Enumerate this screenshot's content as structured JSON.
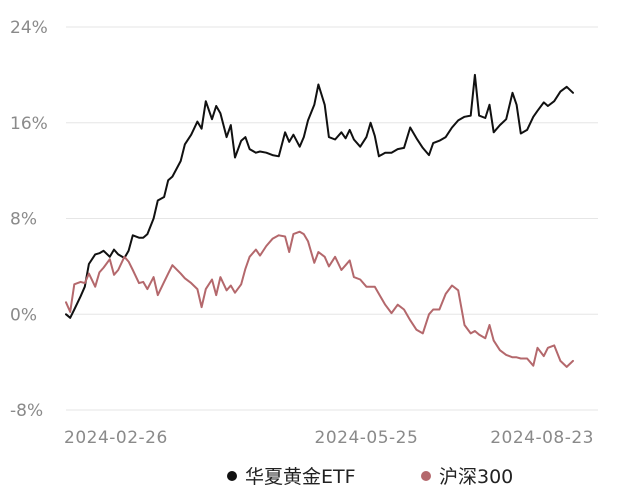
{
  "chart_data": {
    "type": "line",
    "title": "",
    "xlabel": "",
    "ylabel": "",
    "ylim": [
      -8,
      24
    ],
    "yticks": [
      24,
      16,
      8,
      0,
      -8
    ],
    "ytick_labels": [
      "24%",
      "16%",
      "8%",
      "0%",
      "-8%"
    ],
    "xticks": [
      "2024-02-26",
      "2024-05-25",
      "2024-08-23"
    ],
    "x_start": "2024-01-02",
    "x_end": "2024-09-13",
    "grid": true,
    "legend_position": "bottom",
    "series": [
      {
        "name": "华夏黄金ETF",
        "color": "#111111",
        "points": [
          [
            "2024-01-02",
            0.0
          ],
          [
            "2024-01-04",
            -0.3
          ],
          [
            "2024-01-06",
            0.4
          ],
          [
            "2024-01-09",
            1.5
          ],
          [
            "2024-01-11",
            2.3
          ],
          [
            "2024-01-13",
            4.2
          ],
          [
            "2024-01-16",
            5.0
          ],
          [
            "2024-01-18",
            5.1
          ],
          [
            "2024-01-20",
            5.3
          ],
          [
            "2024-01-23",
            4.8
          ],
          [
            "2024-01-25",
            5.4
          ],
          [
            "2024-01-27",
            5.0
          ],
          [
            "2024-01-30",
            4.7
          ],
          [
            "2024-02-01",
            5.3
          ],
          [
            "2024-02-03",
            6.6
          ],
          [
            "2024-02-06",
            6.4
          ],
          [
            "2024-02-08",
            6.4
          ],
          [
            "2024-02-10",
            6.7
          ],
          [
            "2024-02-13",
            8.0
          ],
          [
            "2024-02-15",
            9.5
          ],
          [
            "2024-02-18",
            9.8
          ],
          [
            "2024-02-20",
            11.2
          ],
          [
            "2024-02-22",
            11.5
          ],
          [
            "2024-02-26",
            12.8
          ],
          [
            "2024-02-28",
            14.2
          ],
          [
            "2024-03-02",
            15.0
          ],
          [
            "2024-03-05",
            16.1
          ],
          [
            "2024-03-07",
            15.5
          ],
          [
            "2024-03-09",
            17.8
          ],
          [
            "2024-03-12",
            16.3
          ],
          [
            "2024-03-14",
            17.4
          ],
          [
            "2024-03-16",
            16.8
          ],
          [
            "2024-03-19",
            14.8
          ],
          [
            "2024-03-21",
            15.8
          ],
          [
            "2024-03-23",
            13.1
          ],
          [
            "2024-03-26",
            14.5
          ],
          [
            "2024-03-28",
            14.8
          ],
          [
            "2024-03-30",
            13.8
          ],
          [
            "2024-04-02",
            13.5
          ],
          [
            "2024-04-04",
            13.6
          ],
          [
            "2024-04-07",
            13.5
          ],
          [
            "2024-04-10",
            13.3
          ],
          [
            "2024-04-13",
            13.2
          ],
          [
            "2024-04-16",
            15.2
          ],
          [
            "2024-04-18",
            14.4
          ],
          [
            "2024-04-20",
            15.0
          ],
          [
            "2024-04-23",
            14.0
          ],
          [
            "2024-04-25",
            14.8
          ],
          [
            "2024-04-27",
            16.2
          ],
          [
            "2024-04-30",
            17.5
          ],
          [
            "2024-05-02",
            19.2
          ],
          [
            "2024-05-05",
            17.5
          ],
          [
            "2024-05-07",
            14.8
          ],
          [
            "2024-05-10",
            14.6
          ],
          [
            "2024-05-13",
            15.2
          ],
          [
            "2024-05-15",
            14.7
          ],
          [
            "2024-05-17",
            15.4
          ],
          [
            "2024-05-19",
            14.6
          ],
          [
            "2024-05-22",
            14.0
          ],
          [
            "2024-05-25",
            14.8
          ],
          [
            "2024-05-27",
            16.0
          ],
          [
            "2024-05-29",
            14.9
          ],
          [
            "2024-05-31",
            13.2
          ],
          [
            "2024-06-03",
            13.5
          ],
          [
            "2024-06-06",
            13.5
          ],
          [
            "2024-06-09",
            13.8
          ],
          [
            "2024-06-12",
            13.9
          ],
          [
            "2024-06-15",
            15.6
          ],
          [
            "2024-06-18",
            14.7
          ],
          [
            "2024-06-21",
            13.9
          ],
          [
            "2024-06-24",
            13.3
          ],
          [
            "2024-06-26",
            14.3
          ],
          [
            "2024-06-29",
            14.5
          ],
          [
            "2024-07-02",
            14.8
          ],
          [
            "2024-07-05",
            15.6
          ],
          [
            "2024-07-08",
            16.2
          ],
          [
            "2024-07-11",
            16.5
          ],
          [
            "2024-07-14",
            16.6
          ],
          [
            "2024-07-16",
            20.0
          ],
          [
            "2024-07-18",
            16.6
          ],
          [
            "2024-07-21",
            16.4
          ],
          [
            "2024-07-23",
            17.5
          ],
          [
            "2024-07-25",
            15.2
          ],
          [
            "2024-07-28",
            15.8
          ],
          [
            "2024-07-31",
            16.3
          ],
          [
            "2024-08-03",
            18.5
          ],
          [
            "2024-08-05",
            17.5
          ],
          [
            "2024-08-07",
            15.1
          ],
          [
            "2024-08-10",
            15.4
          ],
          [
            "2024-08-13",
            16.5
          ],
          [
            "2024-08-15",
            17.0
          ],
          [
            "2024-08-18",
            17.7
          ],
          [
            "2024-08-20",
            17.4
          ],
          [
            "2024-08-23",
            17.8
          ],
          [
            "2024-08-26",
            18.6
          ],
          [
            "2024-08-29",
            19.0
          ],
          [
            "2024-09-01",
            18.5
          ]
        ]
      },
      {
        "name": "沪深300",
        "color": "#b4686c",
        "points": [
          [
            "2024-01-02",
            1.0
          ],
          [
            "2024-01-04",
            0.2
          ],
          [
            "2024-01-06",
            2.5
          ],
          [
            "2024-01-09",
            2.7
          ],
          [
            "2024-01-11",
            2.6
          ],
          [
            "2024-01-13",
            3.4
          ],
          [
            "2024-01-16",
            2.3
          ],
          [
            "2024-01-18",
            3.5
          ],
          [
            "2024-01-20",
            3.9
          ],
          [
            "2024-01-23",
            4.6
          ],
          [
            "2024-01-25",
            3.3
          ],
          [
            "2024-01-27",
            3.7
          ],
          [
            "2024-01-30",
            4.8
          ],
          [
            "2024-02-01",
            4.4
          ],
          [
            "2024-02-03",
            3.7
          ],
          [
            "2024-02-06",
            2.6
          ],
          [
            "2024-02-08",
            2.7
          ],
          [
            "2024-02-10",
            2.1
          ],
          [
            "2024-02-13",
            3.1
          ],
          [
            "2024-02-15",
            1.6
          ],
          [
            "2024-02-18",
            2.7
          ],
          [
            "2024-02-20",
            3.4
          ],
          [
            "2024-02-22",
            4.1
          ],
          [
            "2024-02-26",
            3.4
          ],
          [
            "2024-02-28",
            3.0
          ],
          [
            "2024-03-02",
            2.6
          ],
          [
            "2024-03-05",
            2.1
          ],
          [
            "2024-03-07",
            0.6
          ],
          [
            "2024-03-09",
            2.1
          ],
          [
            "2024-03-12",
            2.9
          ],
          [
            "2024-03-14",
            1.6
          ],
          [
            "2024-03-16",
            3.1
          ],
          [
            "2024-03-19",
            2.0
          ],
          [
            "2024-03-21",
            2.4
          ],
          [
            "2024-03-23",
            1.8
          ],
          [
            "2024-03-26",
            2.5
          ],
          [
            "2024-03-28",
            3.8
          ],
          [
            "2024-03-30",
            4.8
          ],
          [
            "2024-04-02",
            5.4
          ],
          [
            "2024-04-04",
            4.9
          ],
          [
            "2024-04-07",
            5.7
          ],
          [
            "2024-04-10",
            6.3
          ],
          [
            "2024-04-13",
            6.6
          ],
          [
            "2024-04-16",
            6.5
          ],
          [
            "2024-04-18",
            5.2
          ],
          [
            "2024-04-20",
            6.7
          ],
          [
            "2024-04-23",
            6.9
          ],
          [
            "2024-04-25",
            6.7
          ],
          [
            "2024-04-27",
            6.1
          ],
          [
            "2024-04-30",
            4.3
          ],
          [
            "2024-05-02",
            5.2
          ],
          [
            "2024-05-05",
            4.8
          ],
          [
            "2024-05-07",
            4.0
          ],
          [
            "2024-05-10",
            4.8
          ],
          [
            "2024-05-13",
            3.7
          ],
          [
            "2024-05-15",
            4.1
          ],
          [
            "2024-05-17",
            4.5
          ],
          [
            "2024-05-19",
            3.1
          ],
          [
            "2024-05-22",
            2.9
          ],
          [
            "2024-05-25",
            2.3
          ],
          [
            "2024-05-27",
            2.3
          ],
          [
            "2024-05-29",
            2.3
          ],
          [
            "2024-05-31",
            1.7
          ],
          [
            "2024-06-03",
            0.8
          ],
          [
            "2024-06-06",
            0.1
          ],
          [
            "2024-06-09",
            0.8
          ],
          [
            "2024-06-12",
            0.4
          ],
          [
            "2024-06-15",
            -0.5
          ],
          [
            "2024-06-18",
            -1.3
          ],
          [
            "2024-06-21",
            -1.6
          ],
          [
            "2024-06-24",
            0.0
          ],
          [
            "2024-06-26",
            0.4
          ],
          [
            "2024-06-29",
            0.4
          ],
          [
            "2024-07-02",
            1.7
          ],
          [
            "2024-07-05",
            2.4
          ],
          [
            "2024-07-08",
            2.0
          ],
          [
            "2024-07-11",
            -0.9
          ],
          [
            "2024-07-14",
            -1.6
          ],
          [
            "2024-07-16",
            -1.4
          ],
          [
            "2024-07-18",
            -1.7
          ],
          [
            "2024-07-21",
            -2.0
          ],
          [
            "2024-07-23",
            -0.9
          ],
          [
            "2024-07-25",
            -2.2
          ],
          [
            "2024-07-28",
            -3.0
          ],
          [
            "2024-07-31",
            -3.4
          ],
          [
            "2024-08-03",
            -3.6
          ],
          [
            "2024-08-05",
            -3.6
          ],
          [
            "2024-08-07",
            -3.7
          ],
          [
            "2024-08-10",
            -3.7
          ],
          [
            "2024-08-13",
            -4.3
          ],
          [
            "2024-08-15",
            -2.8
          ],
          [
            "2024-08-18",
            -3.5
          ],
          [
            "2024-08-20",
            -2.8
          ],
          [
            "2024-08-23",
            -2.6
          ],
          [
            "2024-08-26",
            -3.9
          ],
          [
            "2024-08-29",
            -4.4
          ],
          [
            "2024-09-01",
            -3.9
          ]
        ]
      }
    ]
  }
}
